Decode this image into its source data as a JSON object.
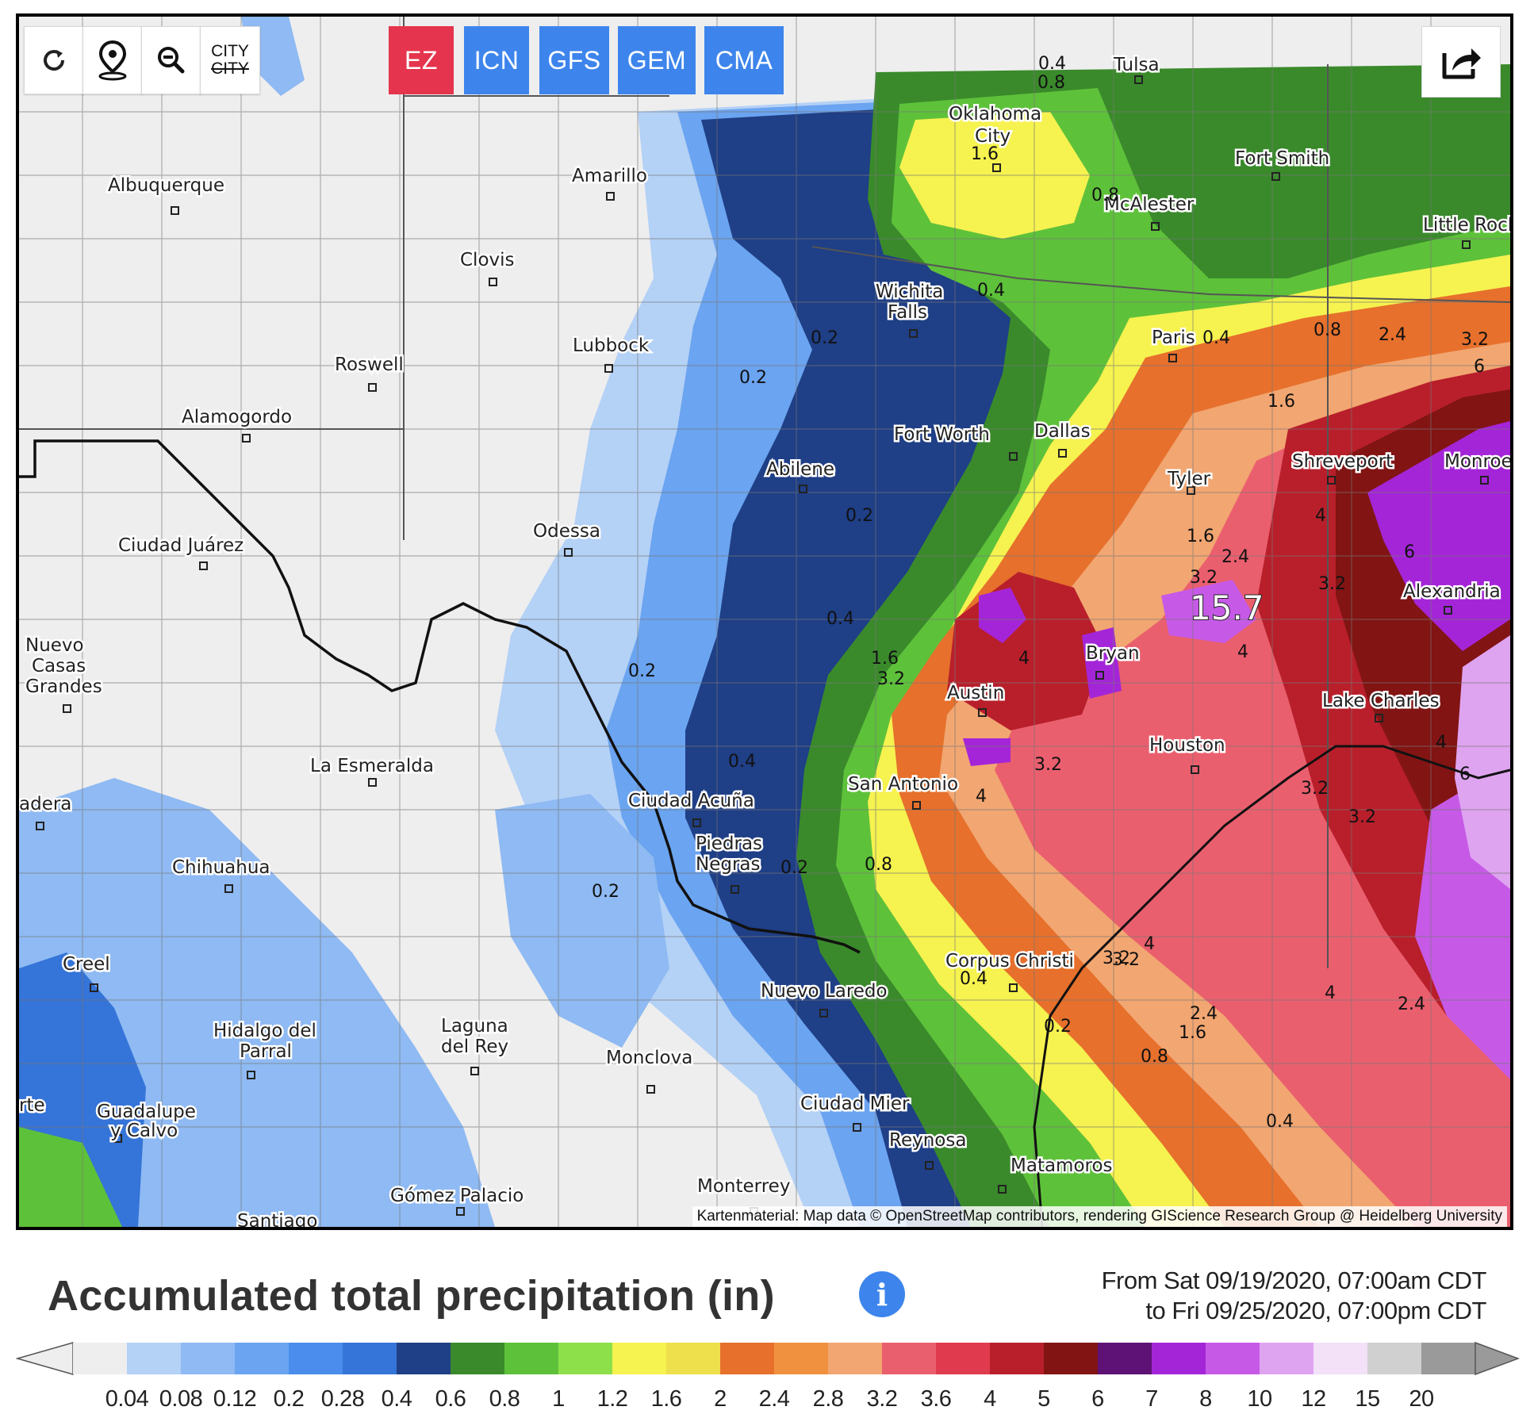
{
  "toolbar": {
    "refresh_icon": "refresh-icon",
    "location_icon": "location-pin-icon",
    "zoom_icon": "zoom-out-icon",
    "city_toggle_top": "CITY",
    "city_toggle_bottom": "CITY"
  },
  "models": [
    {
      "label": "EZ",
      "active": true,
      "color": "#e5344d"
    },
    {
      "label": "ICN",
      "active": false,
      "color": "#3d85ec"
    },
    {
      "label": "GFS",
      "active": false,
      "color": "#3d85ec"
    },
    {
      "label": "GEM",
      "active": false,
      "color": "#3d85ec"
    },
    {
      "label": "CMA",
      "active": false,
      "color": "#3d85ec"
    }
  ],
  "share_icon": "share-icon",
  "map": {
    "cities": {
      "tulsa": "Tulsa",
      "oklahoma_city_1": "Oklahoma",
      "oklahoma_city_2": "City",
      "fort_smith": "Fort Smith",
      "mcalester": "McAlester",
      "little_rock": "Little Rock",
      "albuquerque": "Albuquerque",
      "amarillo": "Amarillo",
      "clovis": "Clovis",
      "wichita_falls_1": "Wichita",
      "wichita_falls_2": "Falls",
      "paris": "Paris",
      "lubbock": "Lubbock",
      "roswell": "Roswell",
      "alamogordo": "Alamogordo",
      "fort_worth": "Fort Worth",
      "dallas": "Dallas",
      "shreveport": "Shreveport",
      "monroe": "Monroe",
      "abilene": "Abilene",
      "tyler": "Tyler",
      "odessa": "Odessa",
      "ciudad_juarez": "Ciudad Juárez",
      "alexandria": "Alexandria",
      "nuevo_casas_grandes_1": "Nuevo",
      "nuevo_casas_grandes_2": "Casas",
      "nuevo_casas_grandes_3": "Grandes",
      "bryan": "Bryan",
      "austin": "Austin",
      "lake_charles": "Lake Charles",
      "houston": "Houston",
      "la_esmeralda": "La Esmeralda",
      "san_antonio": "San Antonio",
      "madera": "adera",
      "ciudad_acuna": "Ciudad Acuña",
      "piedras_negras_1": "Piedras",
      "piedras_negras_2": "Negras",
      "chihuahua": "Chihuahua",
      "corpus_christi": "Corpus Christi",
      "creel": "Creel",
      "nuevo_laredo": "Nuevo Laredo",
      "hidalgo_del_parral_1": "Hidalgo del",
      "hidalgo_del_parral_2": "Parral",
      "laguna_del_rey_1": "Laguna",
      "laguna_del_rey_2": "del Rey",
      "monclova": "Monclova",
      "ciudad_mier": "Ciudad Mier",
      "reynosa": "Reynosa",
      "matamoros": "Matamoros",
      "guadalupe_y_calvo_1": "Guadalupe",
      "guadalupe_y_calvo_2": "y Calvo",
      "monterrey": "Monterrey",
      "gomez_palacio": "Gómez Palacio",
      "santiago": "Santiago",
      "torreon_fragment": "rte"
    },
    "contour_labels": {
      "c1": "0.4",
      "c2": "0.8",
      "c3": "1.6",
      "c4": "0.8",
      "c5": "0.4",
      "c6": "0.4",
      "c7": "0.8",
      "c8": "2.4",
      "c9": "3.2",
      "c10": "6",
      "c11": "0.2",
      "c12": "0.2",
      "c13": "1.6",
      "c14": "0.2",
      "c15": "4",
      "c16": "1.6",
      "c17": "2.4",
      "c18": "3.2",
      "c19": "3.2",
      "c20": "6",
      "c21": "0.4",
      "c22": "1.6",
      "c23": "3.2",
      "c24": "4",
      "c25": "0.2",
      "c26": "4",
      "c27": "3.2",
      "c28": "4",
      "c29": "0.4",
      "c30": "3.2",
      "c31": "4",
      "c32": "6",
      "c33": "3.2",
      "c34": "3.2",
      "c35": "0.2",
      "c36": "0.2",
      "c37": "0.8",
      "c38": "3.2",
      "c39": "4",
      "c40": "0.4",
      "c41": "0.2",
      "c42": "2.4",
      "c43": "1.6",
      "c44": "4",
      "c45": "2.4",
      "c46": "0.8",
      "c47": "0.4"
    },
    "max_value": "15.7",
    "attribution": "Kartenmaterial: Map data © OpenStreetMap contributors, rendering GIScience Research Group @ Heidelberg University"
  },
  "legend": {
    "title": "Accumulated total precipitation (in)",
    "info_icon": "info-icon",
    "date_from": "From Sat 09/19/2020, 07:00am CDT",
    "date_to": "to Fri 09/25/2020, 07:00pm CDT",
    "ticks": [
      "0.04",
      "0.08",
      "0.12",
      "0.2",
      "0.28",
      "0.4",
      "0.6",
      "0.8",
      "1",
      "1.2",
      "1.6",
      "2",
      "2.4",
      "2.8",
      "3.2",
      "3.6",
      "4",
      "5",
      "6",
      "7",
      "8",
      "10",
      "12",
      "15",
      "20"
    ],
    "colors": [
      "#eeeeee",
      "#b4d1f6",
      "#8fbaf3",
      "#6ba4f0",
      "#4a8ded",
      "#3574d8",
      "#1f3f86",
      "#3a8a2b",
      "#5ec13a",
      "#8ee04a",
      "#f6f24f",
      "#ede04c",
      "#e6702c",
      "#f0913f",
      "#f2a671",
      "#ea5f6e",
      "#e03a4e",
      "#b81f2b",
      "#821414",
      "#5e1275",
      "#a425d8",
      "#c65ae7",
      "#dfa4f0",
      "#f2e1f7",
      "#d0d0d0",
      "#9a9a9a"
    ]
  }
}
